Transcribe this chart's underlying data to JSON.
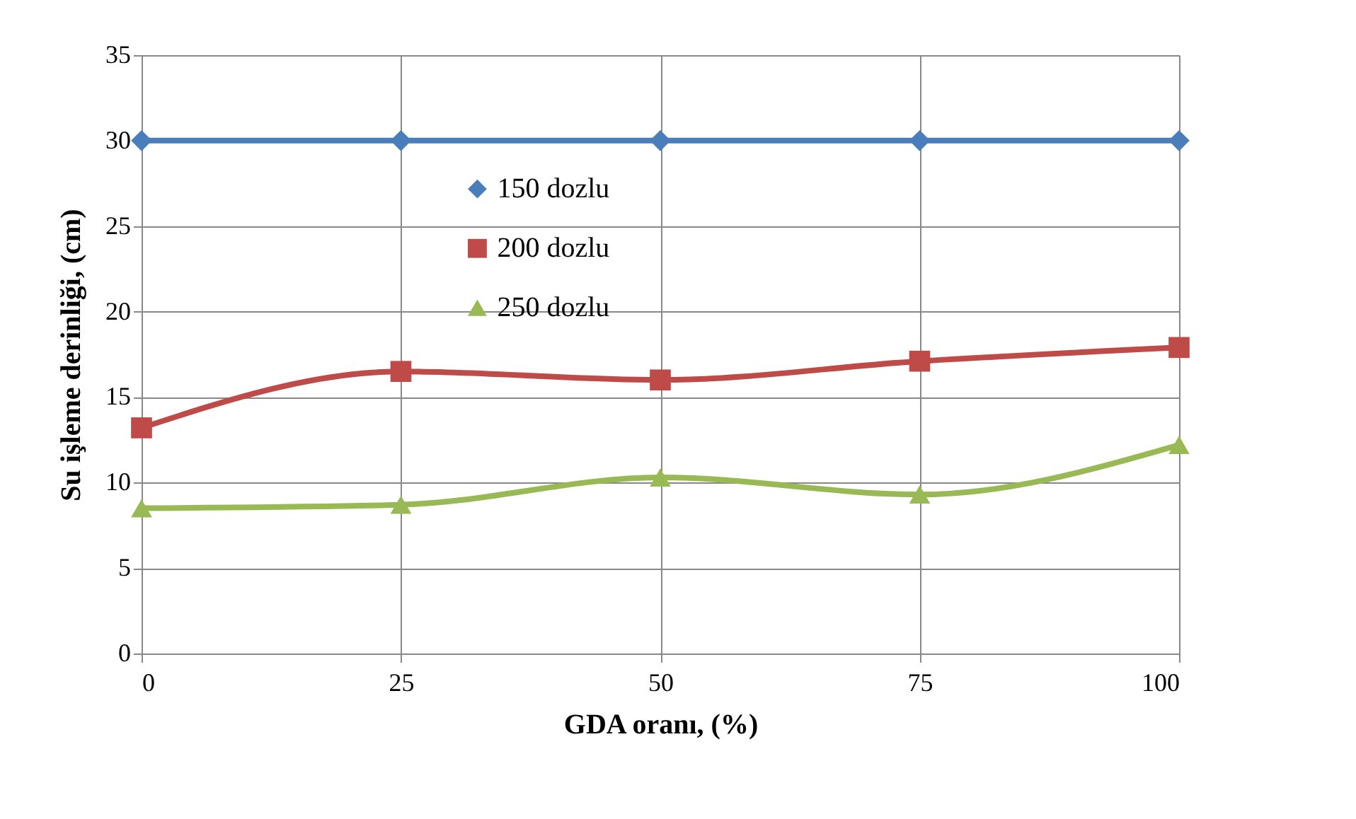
{
  "chart_data": {
    "type": "line",
    "xlabel": "GDA oranı, (%)",
    "ylabel": "Su işleme derinliği,  (cm)",
    "x": [
      0,
      25,
      50,
      75,
      100
    ],
    "series": [
      {
        "name": "150 dozlu",
        "color": "#4a7ebb",
        "marker": "diamond",
        "values": [
          30,
          30,
          30,
          30,
          30
        ]
      },
      {
        "name": "200 dozlu",
        "color": "#be4b48",
        "marker": "square",
        "values": [
          13.2,
          16.5,
          16.0,
          17.1,
          17.9
        ]
      },
      {
        "name": "250 dozlu",
        "color": "#98b954",
        "marker": "triangle",
        "values": [
          8.5,
          8.7,
          10.3,
          9.3,
          12.2
        ]
      }
    ],
    "xlim": [
      0,
      100
    ],
    "xticks": [
      0,
      25,
      50,
      75,
      100
    ],
    "ylim": [
      0,
      35
    ],
    "yticks": [
      0,
      5,
      10,
      15,
      20,
      25,
      30,
      35
    ],
    "grid": true,
    "legend": "top"
  }
}
